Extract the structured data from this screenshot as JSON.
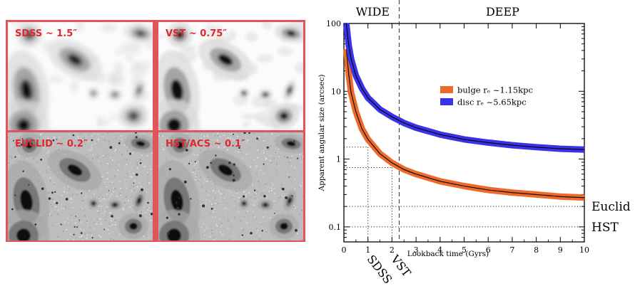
{
  "panels": [
    {
      "label": "SDSS ~ 1.5″",
      "style": "smooth"
    },
    {
      "label": "VST ~ 0.75″",
      "style": "smooth"
    },
    {
      "label": "EUCLID ~ 0.2″",
      "style": "noisy"
    },
    {
      "label": "HST/ACS ~ 0.1″",
      "style": "noisy"
    }
  ],
  "colors": {
    "panel_border": "#e2545c",
    "panel_label": "#e0262e",
    "bulge": "#ee6a2a",
    "disc": "#3a32e6"
  },
  "chart_data": {
    "type": "line",
    "xlabel": "Lookback time (Gyrs)",
    "ylabel": "Apparent angular size (arcsec)",
    "xlim": [
      0,
      10
    ],
    "ylim": [
      0.06,
      100
    ],
    "yscale": "log",
    "x_ticks": [
      0,
      1,
      2,
      3,
      4,
      5,
      6,
      7,
      8,
      9,
      10
    ],
    "y_ticks": [
      {
        "value": 0.1,
        "label": "0.1"
      },
      {
        "value": 1,
        "label": "1"
      },
      {
        "value": 10,
        "label": "10"
      },
      {
        "value": 100,
        "label": "100"
      }
    ],
    "series": [
      {
        "name": "bulge  rₑ ~1.15kpc",
        "color": "#ee6a2a",
        "x": [
          0.1,
          0.2,
          0.3,
          0.5,
          0.75,
          1,
          1.5,
          2,
          2.5,
          3,
          4,
          5,
          6,
          7,
          8,
          9,
          10
        ],
        "y": [
          42,
          18,
          9.5,
          5,
          2.8,
          1.95,
          1.2,
          0.88,
          0.7,
          0.6,
          0.47,
          0.4,
          0.35,
          0.32,
          0.3,
          0.28,
          0.27
        ]
      },
      {
        "name": "disc    rₑ ~5.65kpc",
        "color": "#3a32e6",
        "x": [
          0.1,
          0.2,
          0.3,
          0.5,
          0.75,
          1,
          1.5,
          2,
          2.5,
          3,
          4,
          5,
          6,
          7,
          8,
          9,
          10
        ],
        "y": [
          100,
          48,
          30,
          17,
          11,
          8,
          5.4,
          4.2,
          3.4,
          2.9,
          2.3,
          1.95,
          1.75,
          1.6,
          1.5,
          1.42,
          1.38
        ]
      }
    ],
    "legend_position": "right",
    "region_labels": [
      {
        "text": "WIDE",
        "x": 1.2
      },
      {
        "text": "DEEP",
        "x": 6.6
      }
    ],
    "divider_x": 2.3,
    "reference_lines": [
      {
        "label": "Euclid",
        "y": 0.2
      },
      {
        "label": "HST",
        "y": 0.1
      }
    ],
    "survey_markers": [
      {
        "label": "SDSS",
        "x": 1.0,
        "y": 1.5
      },
      {
        "label": "VST",
        "x": 2.0,
        "y": 0.75
      }
    ]
  }
}
